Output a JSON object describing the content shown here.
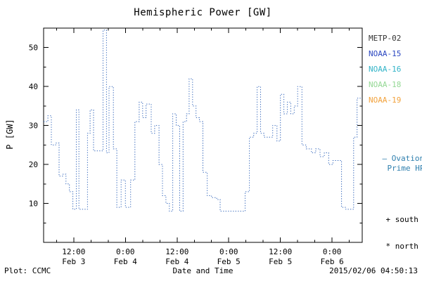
{
  "title": "Hemispheric Power [GW]",
  "footer": {
    "left": "Plot: CCMC",
    "right": "2015/02/06 04:50:13"
  },
  "legend": {
    "satellites": [
      {
        "label": "METP-02",
        "color": "#333333"
      },
      {
        "label": "NOAA-15",
        "color": "#2a46c0"
      },
      {
        "label": "NOAA-16",
        "color": "#32b4c8"
      },
      {
        "label": "NOAA-18",
        "color": "#94d894"
      },
      {
        "label": "NOAA-19",
        "color": "#f2a23c"
      }
    ],
    "line_label": {
      "marker": "—",
      "lines": [
        "Ovation",
        "Prime HPI"
      ],
      "color": "#2e7fae"
    },
    "markers": [
      {
        "symbol": "+",
        "label": "south"
      },
      {
        "symbol": "*",
        "label": "north"
      }
    ]
  },
  "chart_data": {
    "type": "line",
    "subtype": "dotted-step",
    "title": "Hemispheric Power [GW]",
    "xlabel": "Date and Time",
    "ylabel": "P [GW]",
    "ylim": [
      0,
      55
    ],
    "yticks": [
      10,
      20,
      30,
      40,
      50
    ],
    "grid": false,
    "legend_position": "right",
    "x_hours_range": [
      0,
      74
    ],
    "x_epoch": "hours since 2015-02-03 05:00",
    "xticks": [
      {
        "hour": 7,
        "time": "12:00",
        "date": "Feb 3"
      },
      {
        "hour": 19,
        "time": "0:00",
        "date": "Feb 4"
      },
      {
        "hour": 31,
        "time": "12:00",
        "date": "Feb 4"
      },
      {
        "hour": 43,
        "time": "0:00",
        "date": "Feb 5"
      },
      {
        "hour": 55,
        "time": "12:00",
        "date": "Feb 5"
      },
      {
        "hour": 67,
        "time": "0:00",
        "date": "Feb 6"
      }
    ],
    "series": [
      {
        "name": "Ovation Prime HPI",
        "color": "#3366bb",
        "units": "GW",
        "points": [
          [
            0,
            31
          ],
          [
            1.0,
            32.5
          ],
          [
            1.8,
            25
          ],
          [
            2.8,
            25.5
          ],
          [
            3.6,
            17
          ],
          [
            4.4,
            17.5
          ],
          [
            5.2,
            15
          ],
          [
            6.0,
            13
          ],
          [
            6.8,
            8.5
          ],
          [
            7.6,
            34
          ],
          [
            8.2,
            8.5
          ],
          [
            9.4,
            8.5
          ],
          [
            10.2,
            28
          ],
          [
            10.8,
            34
          ],
          [
            11.6,
            23.5
          ],
          [
            13.2,
            23.5
          ],
          [
            13.8,
            54.5
          ],
          [
            14.6,
            23
          ],
          [
            15.2,
            40
          ],
          [
            16.2,
            24
          ],
          [
            17.0,
            9
          ],
          [
            18.0,
            16
          ],
          [
            19.0,
            9
          ],
          [
            20.2,
            16
          ],
          [
            21.2,
            31
          ],
          [
            22.2,
            36
          ],
          [
            23.0,
            32
          ],
          [
            23.8,
            35.5
          ],
          [
            25.0,
            28
          ],
          [
            25.8,
            30
          ],
          [
            26.8,
            20
          ],
          [
            27.6,
            12
          ],
          [
            28.4,
            10
          ],
          [
            29.2,
            8
          ],
          [
            30.0,
            33
          ],
          [
            30.8,
            30
          ],
          [
            31.6,
            8
          ],
          [
            32.4,
            31
          ],
          [
            33.2,
            33
          ],
          [
            33.8,
            42
          ],
          [
            34.6,
            35
          ],
          [
            35.4,
            32
          ],
          [
            36.2,
            31
          ],
          [
            37.0,
            18
          ],
          [
            38.0,
            12
          ],
          [
            39.0,
            11.5
          ],
          [
            40.2,
            11
          ],
          [
            41.0,
            8
          ],
          [
            46.8,
            13
          ],
          [
            47.8,
            27
          ],
          [
            48.8,
            28
          ],
          [
            49.6,
            40
          ],
          [
            50.4,
            28
          ],
          [
            51.2,
            27
          ],
          [
            52.2,
            27
          ],
          [
            53.2,
            30
          ],
          [
            54.2,
            26
          ],
          [
            55.0,
            38
          ],
          [
            55.8,
            33
          ],
          [
            56.6,
            36
          ],
          [
            57.4,
            33
          ],
          [
            58.2,
            35
          ],
          [
            59.0,
            40
          ],
          [
            60.0,
            25
          ],
          [
            61.0,
            24
          ],
          [
            62.2,
            23
          ],
          [
            63.2,
            24
          ],
          [
            64.2,
            22
          ],
          [
            65.2,
            23
          ],
          [
            66.2,
            20
          ],
          [
            67.2,
            21
          ],
          [
            68.4,
            21
          ],
          [
            69.2,
            9
          ],
          [
            70.2,
            8.5
          ],
          [
            71.4,
            8.5
          ],
          [
            72.0,
            27
          ],
          [
            72.8,
            37
          ]
        ]
      }
    ]
  }
}
